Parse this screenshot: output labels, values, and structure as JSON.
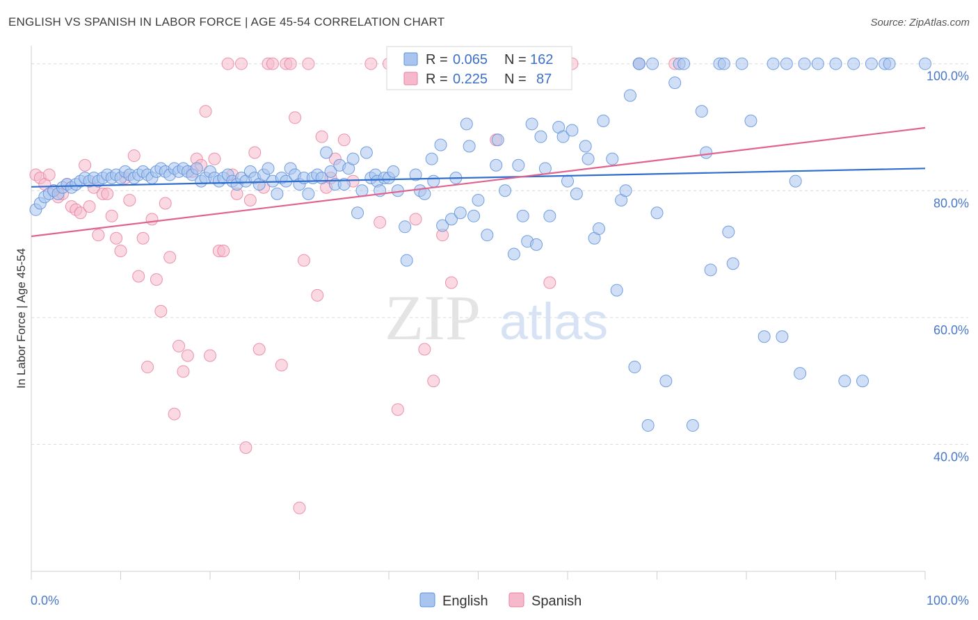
{
  "title": "ENGLISH VS SPANISH IN LABOR FORCE | AGE 45-54 CORRELATION CHART",
  "source": "Source: ZipAtlas.com",
  "watermark": {
    "part1": "ZIP",
    "part2": "atlas"
  },
  "colors": {
    "english_fill": "#a9c4ef",
    "english_stroke": "#5b8fdb",
    "english_line": "#2f6dcc",
    "spanish_fill": "#f6b9cc",
    "spanish_stroke": "#e8809f",
    "spanish_line": "#e0628e",
    "tick_label": "#4a78c9",
    "grid": "#d9d9d9"
  },
  "legend": {
    "rows": [
      {
        "r_label": "R =",
        "r_value": "0.065",
        "n_label": "N =",
        "n_value": "162"
      },
      {
        "r_label": "R =",
        "r_value": "0.225",
        "n_label": "N =",
        "n_value": "87"
      }
    ]
  },
  "bottom_legend": [
    "English",
    "Spanish"
  ],
  "chart_data": {
    "type": "scatter",
    "xlabel": "",
    "ylabel": "In Labor Force | Age 45-54",
    "xlim": [
      0,
      100
    ],
    "ylim": [
      20,
      101.5
    ],
    "x_tick_labels": [
      "0.0%",
      "100.0%"
    ],
    "y_ticks": [
      40,
      60,
      80,
      100
    ],
    "y_tick_labels": [
      "40.0%",
      "60.0%",
      "80.0%",
      "100.0%"
    ],
    "grid": true,
    "legend_position": "top-center",
    "series": [
      {
        "name": "English",
        "r": 0.065,
        "n": 162,
        "trend": {
          "x": [
            0,
            100
          ],
          "y": [
            80.6,
            83.5
          ]
        },
        "points": [
          [
            0.5,
            77
          ],
          [
            1,
            78
          ],
          [
            1.5,
            79
          ],
          [
            2,
            79.5
          ],
          [
            2.5,
            80
          ],
          [
            3,
            79.5
          ],
          [
            3.5,
            80.5
          ],
          [
            4,
            81
          ],
          [
            4.5,
            80.5
          ],
          [
            5,
            81
          ],
          [
            5.5,
            81.5
          ],
          [
            6,
            82
          ],
          [
            6.5,
            81.5
          ],
          [
            7,
            82
          ],
          [
            7.5,
            81.5
          ],
          [
            8,
            82
          ],
          [
            8.5,
            82.5
          ],
          [
            9,
            82
          ],
          [
            9.5,
            82.5
          ],
          [
            10,
            82
          ],
          [
            10.5,
            83
          ],
          [
            11,
            82.5
          ],
          [
            11.5,
            82
          ],
          [
            12,
            82.5
          ],
          [
            12.5,
            83
          ],
          [
            13,
            82.5
          ],
          [
            13.5,
            82
          ],
          [
            14,
            83
          ],
          [
            14.5,
            83.5
          ],
          [
            15,
            83
          ],
          [
            15.5,
            82.5
          ],
          [
            16,
            83.5
          ],
          [
            16.5,
            83
          ],
          [
            17,
            83.5
          ],
          [
            17.5,
            83
          ],
          [
            18,
            82.5
          ],
          [
            18.5,
            83.5
          ],
          [
            19,
            81.5
          ],
          [
            19.5,
            82
          ],
          [
            20,
            83
          ],
          [
            20.5,
            82
          ],
          [
            21,
            81.5
          ],
          [
            21.5,
            82
          ],
          [
            22,
            82.5
          ],
          [
            22.5,
            81.5
          ],
          [
            23,
            81
          ],
          [
            23.5,
            82
          ],
          [
            24,
            81.5
          ],
          [
            24.5,
            83
          ],
          [
            25,
            82
          ],
          [
            25.5,
            81
          ],
          [
            26,
            82.5
          ],
          [
            26.5,
            83.5
          ],
          [
            27,
            81.5
          ],
          [
            27.5,
            79.5
          ],
          [
            28,
            82
          ],
          [
            28.5,
            81.5
          ],
          [
            29,
            83.5
          ],
          [
            29.5,
            82.5
          ],
          [
            30,
            81
          ],
          [
            30.5,
            82
          ],
          [
            31,
            79.5
          ],
          [
            31.5,
            82
          ],
          [
            32,
            82.5
          ],
          [
            32.5,
            82
          ],
          [
            33,
            86
          ],
          [
            33.5,
            83
          ],
          [
            34,
            81
          ],
          [
            34.5,
            84
          ],
          [
            35,
            81
          ],
          [
            35.5,
            83.5
          ],
          [
            36,
            85
          ],
          [
            36.5,
            76.5
          ],
          [
            37,
            80
          ],
          [
            37.5,
            86
          ],
          [
            38,
            82
          ],
          [
            38.5,
            82.5
          ],
          [
            38.7,
            81.5
          ],
          [
            39,
            80
          ],
          [
            39.5,
            82
          ],
          [
            40,
            82
          ],
          [
            40.5,
            83
          ],
          [
            41,
            80
          ],
          [
            41.8,
            74.3
          ],
          [
            42,
            69
          ],
          [
            43,
            82.5
          ],
          [
            43.5,
            80
          ],
          [
            44,
            79.5
          ],
          [
            44.8,
            85
          ],
          [
            45,
            81.5
          ],
          [
            45.8,
            87.2
          ],
          [
            46,
            74.5
          ],
          [
            47,
            75.5
          ],
          [
            47.5,
            82
          ],
          [
            48,
            76.5
          ],
          [
            48.7,
            90.5
          ],
          [
            49,
            87
          ],
          [
            49.5,
            76
          ],
          [
            50,
            78.5
          ],
          [
            51,
            73
          ],
          [
            52,
            84
          ],
          [
            52.2,
            88
          ],
          [
            53,
            80
          ],
          [
            54,
            70
          ],
          [
            54.5,
            84
          ],
          [
            55,
            76
          ],
          [
            55.5,
            72
          ],
          [
            56,
            90.5
          ],
          [
            56.5,
            71.5
          ],
          [
            57,
            88.5
          ],
          [
            57.5,
            83.5
          ],
          [
            58,
            76
          ],
          [
            59,
            90
          ],
          [
            59.5,
            88.5
          ],
          [
            60,
            81.5
          ],
          [
            60.5,
            89.5
          ],
          [
            61,
            79.5
          ],
          [
            62,
            87
          ],
          [
            62.3,
            85
          ],
          [
            63,
            72.5
          ],
          [
            63.5,
            74
          ],
          [
            64,
            91
          ],
          [
            65,
            85
          ],
          [
            65.5,
            64.3
          ],
          [
            66,
            78.5
          ],
          [
            66.5,
            80
          ],
          [
            67,
            95
          ],
          [
            67.5,
            52.2
          ],
          [
            68,
            100
          ],
          [
            68,
            100
          ],
          [
            69,
            43
          ],
          [
            69.5,
            100
          ],
          [
            70,
            76.5
          ],
          [
            71,
            50
          ],
          [
            72,
            97
          ],
          [
            72.5,
            100
          ],
          [
            73,
            100
          ],
          [
            74,
            43
          ],
          [
            75,
            92.5
          ],
          [
            75.5,
            86
          ],
          [
            76,
            67.5
          ],
          [
            77,
            100
          ],
          [
            77.5,
            100
          ],
          [
            78,
            73.5
          ],
          [
            78.5,
            68.5
          ],
          [
            79.5,
            100
          ],
          [
            80.5,
            91
          ],
          [
            82,
            57
          ],
          [
            83,
            100
          ],
          [
            84,
            57
          ],
          [
            84.5,
            100
          ],
          [
            85.5,
            81.5
          ],
          [
            86,
            51.2
          ],
          [
            86.5,
            100
          ],
          [
            88,
            100
          ],
          [
            90,
            100
          ],
          [
            91,
            50
          ],
          [
            92,
            100
          ],
          [
            93,
            50
          ],
          [
            94,
            100
          ],
          [
            95.5,
            100
          ],
          [
            96,
            100
          ],
          [
            100,
            100
          ]
        ]
      },
      {
        "name": "Spanish",
        "r": 0.225,
        "n": 87,
        "trend": {
          "x": [
            0,
            100
          ],
          "y": [
            72.8,
            89.9
          ]
        },
        "points": [
          [
            0.5,
            82.5
          ],
          [
            1,
            82
          ],
          [
            1.5,
            81
          ],
          [
            2,
            82.5
          ],
          [
            2.5,
            80
          ],
          [
            3,
            79
          ],
          [
            3.5,
            79.5
          ],
          [
            4,
            81
          ],
          [
            4.5,
            77.5
          ],
          [
            5,
            77
          ],
          [
            5.5,
            76.5
          ],
          [
            6,
            84
          ],
          [
            6.5,
            77.5
          ],
          [
            7,
            80.5
          ],
          [
            7.5,
            73
          ],
          [
            8,
            79.5
          ],
          [
            8.5,
            79.5
          ],
          [
            9,
            76
          ],
          [
            9.5,
            72.5
          ],
          [
            10,
            70.5
          ],
          [
            10.5,
            82
          ],
          [
            11,
            78.5
          ],
          [
            11.5,
            85.5
          ],
          [
            12,
            66.5
          ],
          [
            12.5,
            72.5
          ],
          [
            13,
            52.2
          ],
          [
            13.5,
            75.5
          ],
          [
            14,
            66
          ],
          [
            14.5,
            61
          ],
          [
            15,
            78
          ],
          [
            15.5,
            69.5
          ],
          [
            16,
            44.8
          ],
          [
            16.5,
            55.5
          ],
          [
            17,
            51.5
          ],
          [
            17.5,
            54
          ],
          [
            18,
            83
          ],
          [
            18.5,
            85
          ],
          [
            19,
            84
          ],
          [
            19.5,
            92.5
          ],
          [
            20,
            54
          ],
          [
            20.5,
            85
          ],
          [
            21,
            70.5
          ],
          [
            21.5,
            70.5
          ],
          [
            22,
            100
          ],
          [
            22.5,
            82.5
          ],
          [
            23,
            79.5
          ],
          [
            23.5,
            100
          ],
          [
            24,
            39.5
          ],
          [
            24.5,
            78.5
          ],
          [
            25,
            86
          ],
          [
            25.5,
            55
          ],
          [
            26,
            80.5
          ],
          [
            26.5,
            100
          ],
          [
            27,
            100
          ],
          [
            28,
            52.5
          ],
          [
            28.5,
            100
          ],
          [
            29,
            100
          ],
          [
            29.5,
            91.5
          ],
          [
            30,
            30
          ],
          [
            30.5,
            69
          ],
          [
            31,
            100
          ],
          [
            32,
            63.5
          ],
          [
            32.5,
            88.5
          ],
          [
            33,
            80.5
          ],
          [
            33.5,
            82
          ],
          [
            34,
            85
          ],
          [
            35,
            88
          ],
          [
            36,
            81.5
          ],
          [
            38,
            100
          ],
          [
            39,
            75
          ],
          [
            40,
            100
          ],
          [
            41,
            45.5
          ],
          [
            42,
            100
          ],
          [
            43,
            75.5
          ],
          [
            44,
            55
          ],
          [
            45,
            50
          ],
          [
            46,
            73
          ],
          [
            47,
            65.5
          ],
          [
            50,
            100
          ],
          [
            51,
            100
          ],
          [
            52,
            88
          ],
          [
            53,
            100
          ],
          [
            55,
            100
          ],
          [
            58,
            65.5
          ],
          [
            60.5,
            100
          ],
          [
            68,
            100
          ],
          [
            72,
            100
          ]
        ]
      }
    ]
  }
}
